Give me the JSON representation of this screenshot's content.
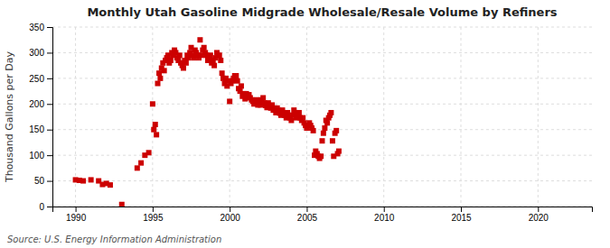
{
  "chart_data": {
    "type": "scatter",
    "title": "Monthly Utah Gasoline Midgrade Wholesale/Resale Volume by Refiners",
    "ylabel": "Thousand Gallons per Day",
    "source": "Source: U.S. Energy Information Administration",
    "color": "#cc0000",
    "marker": "square",
    "grid": true,
    "xlim": [
      1988.5,
      2023.5
    ],
    "ylim": [
      0,
      350
    ],
    "xticks": [
      1990,
      1995,
      2000,
      2005,
      2010,
      2015,
      2020
    ],
    "yticks": [
      0,
      50,
      100,
      150,
      200,
      250,
      300,
      350
    ],
    "x": [
      1990.0,
      1990.25,
      1990.5,
      1991.0,
      1991.5,
      1991.75,
      1992.0,
      1992.25,
      1993.0,
      1994.0,
      1994.25,
      1994.5,
      1994.75,
      1995.0,
      1995.08,
      1995.17,
      1995.25,
      1995.33,
      1995.42,
      1995.5,
      1995.58,
      1995.67,
      1995.75,
      1995.83,
      1995.92,
      1996.0,
      1996.08,
      1996.17,
      1996.25,
      1996.33,
      1996.42,
      1996.5,
      1996.58,
      1996.67,
      1996.75,
      1996.83,
      1996.92,
      1997.0,
      1997.08,
      1997.17,
      1997.25,
      1997.33,
      1997.42,
      1997.5,
      1997.58,
      1997.67,
      1997.75,
      1997.83,
      1997.92,
      1998.0,
      1998.08,
      1998.17,
      1998.25,
      1998.33,
      1998.42,
      1998.5,
      1998.58,
      1998.67,
      1998.75,
      1998.83,
      1998.92,
      1999.0,
      1999.08,
      1999.17,
      1999.25,
      1999.33,
      1999.42,
      1999.5,
      1999.58,
      1999.67,
      1999.75,
      1999.83,
      1999.92,
      2000.0,
      2000.08,
      2000.17,
      2000.25,
      2000.33,
      2000.42,
      2000.5,
      2000.58,
      2000.67,
      2000.75,
      2000.83,
      2000.92,
      2001.0,
      2001.08,
      2001.17,
      2001.25,
      2001.33,
      2001.42,
      2001.5,
      2001.58,
      2001.67,
      2001.75,
      2001.83,
      2001.92,
      2002.0,
      2002.08,
      2002.17,
      2002.25,
      2002.33,
      2002.42,
      2002.5,
      2002.58,
      2002.67,
      2002.75,
      2002.83,
      2002.92,
      2003.0,
      2003.08,
      2003.17,
      2003.25,
      2003.33,
      2003.42,
      2003.5,
      2003.58,
      2003.67,
      2003.75,
      2003.83,
      2003.92,
      2004.0,
      2004.08,
      2004.17,
      2004.25,
      2004.33,
      2004.42,
      2004.5,
      2004.58,
      2004.67,
      2004.75,
      2004.83,
      2004.92,
      2005.0,
      2005.08,
      2005.17,
      2005.25,
      2005.33,
      2005.42,
      2005.5,
      2005.58,
      2005.67,
      2005.75,
      2005.83,
      2005.92,
      2006.0,
      2006.08,
      2006.17,
      2006.25,
      2006.33,
      2006.42,
      2006.5,
      2006.58,
      2006.67,
      2006.75,
      2006.83,
      2006.92,
      2007.0,
      2007.08
    ],
    "values": [
      52,
      51,
      50,
      52,
      50,
      43,
      45,
      42,
      4,
      75,
      85,
      100,
      105,
      200,
      150,
      160,
      140,
      240,
      260,
      250,
      270,
      280,
      265,
      285,
      290,
      295,
      280,
      285,
      300,
      295,
      305,
      300,
      290,
      285,
      295,
      280,
      275,
      270,
      285,
      280,
      295,
      290,
      300,
      310,
      295,
      290,
      305,
      300,
      295,
      290,
      325,
      295,
      305,
      310,
      300,
      295,
      285,
      290,
      295,
      280,
      285,
      275,
      290,
      300,
      295,
      295,
      285,
      260,
      250,
      240,
      250,
      235,
      245,
      205,
      240,
      245,
      250,
      255,
      255,
      245,
      230,
      225,
      235,
      215,
      220,
      210,
      220,
      215,
      218,
      212,
      208,
      205,
      200,
      203,
      208,
      198,
      202,
      198,
      208,
      212,
      202,
      197,
      193,
      202,
      197,
      192,
      198,
      188,
      192,
      183,
      192,
      188,
      182,
      178,
      188,
      183,
      178,
      173,
      183,
      178,
      173,
      168,
      178,
      188,
      183,
      173,
      178,
      183,
      173,
      168,
      173,
      163,
      158,
      153,
      158,
      163,
      158,
      153,
      148,
      100,
      108,
      103,
      98,
      94,
      98,
      128,
      143,
      153,
      168,
      163,
      173,
      178,
      183,
      128,
      98,
      143,
      148,
      103,
      108
    ]
  }
}
